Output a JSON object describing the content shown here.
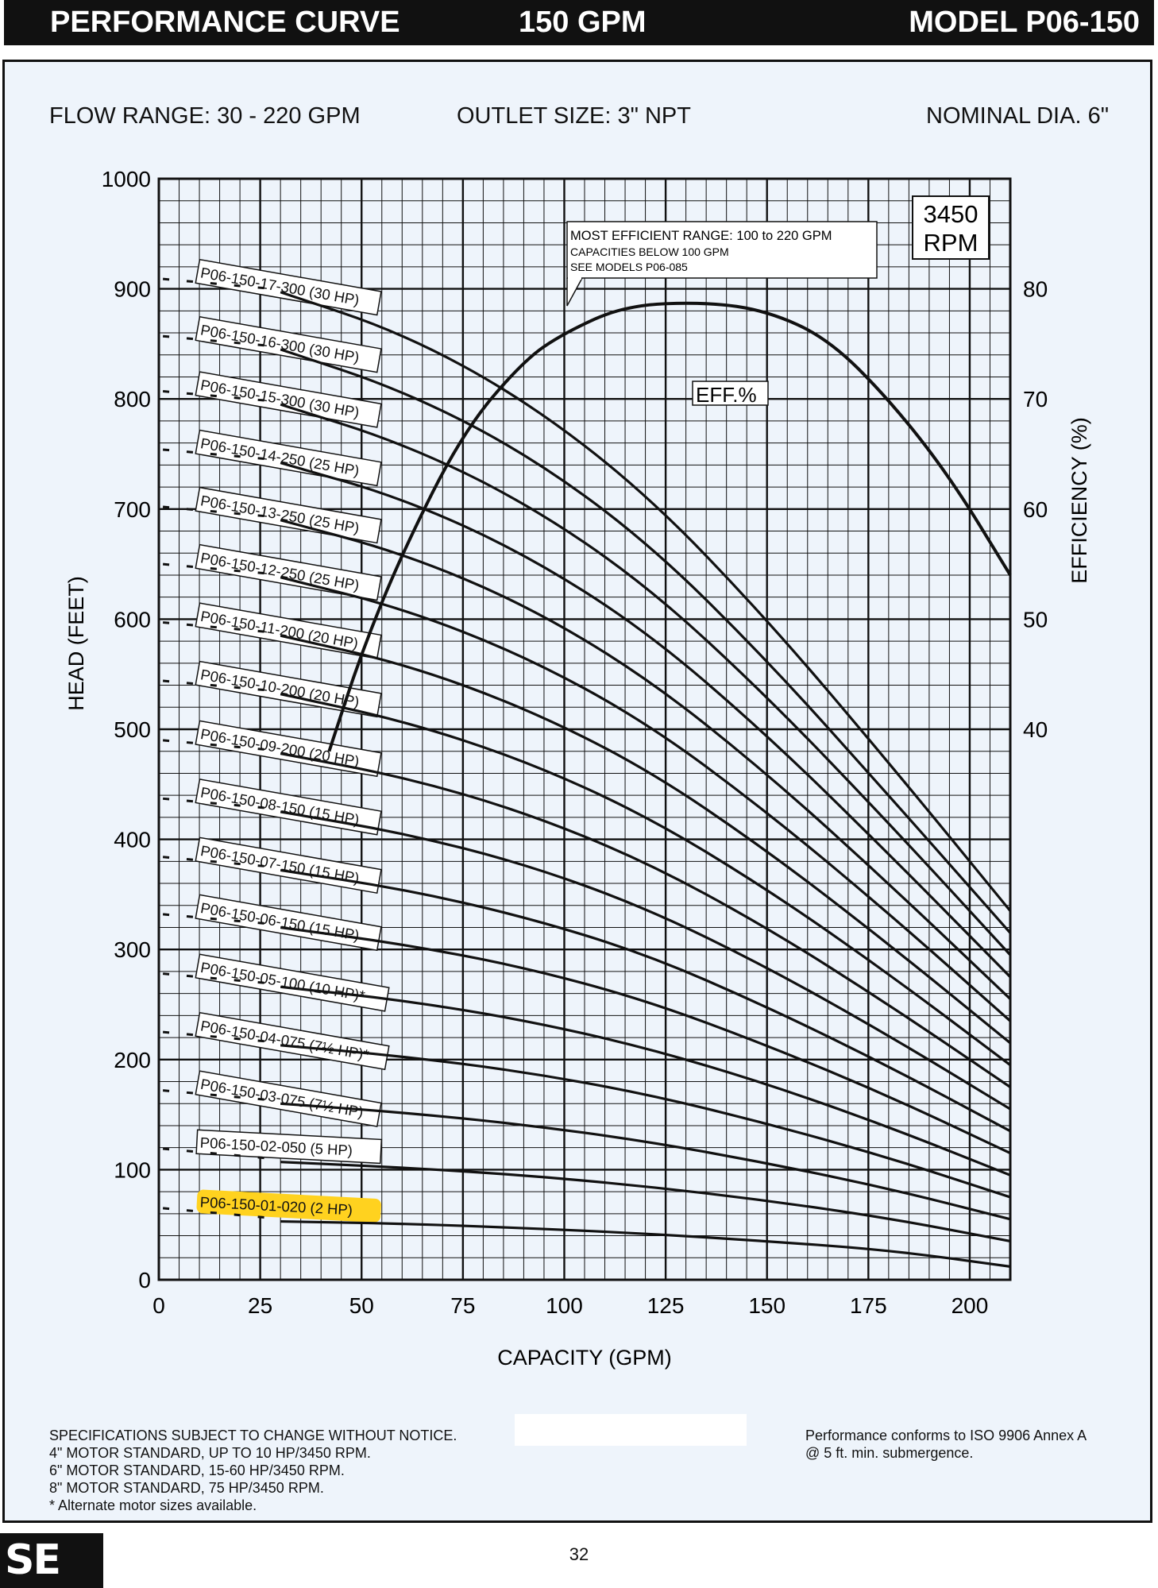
{
  "header": {
    "left": "PERFORMANCE CURVE",
    "center": "150 GPM",
    "right": "MODEL  P06-150"
  },
  "info": {
    "flow_range": "FLOW RANGE: 30 - 220 GPM",
    "outlet": "OUTLET SIZE: 3\" NPT",
    "nominal": "NOMINAL DIA. 6\""
  },
  "chart_data": {
    "type": "line",
    "xlabel": "CAPACITY (GPM)",
    "ylabel": "HEAD (FEET)",
    "y2label": "EFFICIENCY (%)",
    "xlim": [
      0,
      210
    ],
    "ylim": [
      0,
      1000
    ],
    "y2lim": [
      -10,
      90
    ],
    "x_ticks": [
      0,
      25,
      50,
      75,
      100,
      125,
      150,
      175,
      200
    ],
    "y_ticks": [
      0,
      100,
      200,
      300,
      400,
      500,
      600,
      700,
      800,
      900,
      1000
    ],
    "y2_ticks": [
      40,
      50,
      60,
      70,
      80
    ],
    "grid": true,
    "rpm_box": [
      "3450",
      "RPM"
    ],
    "efficiency_label": "EFF.%",
    "note": [
      "MOST EFFICIENT RANGE: 100 to 220 GPM",
      "CAPACITIES BELOW 100 GPM",
      "SEE MODELS  P06-085"
    ],
    "series": [
      {
        "name": "P06-150-17-300 (30 HP)",
        "x": [
          30,
          60,
          90,
          120,
          150,
          180,
          210
        ],
        "y": [
          897,
          860,
          800,
          715,
          600,
          470,
          335
        ]
      },
      {
        "name": "P06-150-16-300 (30 HP)",
        "x": [
          30,
          60,
          90,
          120,
          150,
          180,
          210
        ],
        "y": [
          845,
          808,
          752,
          672,
          563,
          440,
          315
        ]
      },
      {
        "name": "P06-150-15-300 (30 HP)",
        "x": [
          30,
          60,
          90,
          120,
          150,
          180,
          210
        ],
        "y": [
          795,
          760,
          707,
          632,
          530,
          415,
          295
        ]
      },
      {
        "name": "P06-150-14-250 (25 HP)",
        "x": [
          30,
          60,
          90,
          120,
          150,
          180,
          210
        ],
        "y": [
          742,
          710,
          660,
          590,
          495,
          387,
          275
        ]
      },
      {
        "name": "P06-150-13-250 (25 HP)",
        "x": [
          30,
          60,
          90,
          120,
          150,
          180,
          210
        ],
        "y": [
          690,
          660,
          614,
          548,
          460,
          360,
          255
        ]
      },
      {
        "name": "P06-150-12-250 (25 HP)",
        "x": [
          30,
          60,
          90,
          120,
          150,
          180,
          210
        ],
        "y": [
          638,
          610,
          567,
          507,
          425,
          333,
          235
        ]
      },
      {
        "name": "P06-150-11-200 (20 HP)",
        "x": [
          30,
          60,
          90,
          120,
          150,
          180,
          210
        ],
        "y": [
          585,
          560,
          520,
          465,
          390,
          305,
          215
        ]
      },
      {
        "name": "P06-150-10-200 (20 HP)",
        "x": [
          30,
          60,
          90,
          120,
          150,
          180,
          210
        ],
        "y": [
          532,
          508,
          472,
          422,
          355,
          278,
          195
        ]
      },
      {
        "name": "P06-150-09-200 (20 HP)",
        "x": [
          30,
          60,
          90,
          120,
          150,
          180,
          210
        ],
        "y": [
          478,
          457,
          425,
          380,
          320,
          250,
          175
        ]
      },
      {
        "name": "P06-150-08-150 (15 HP)",
        "x": [
          30,
          60,
          90,
          120,
          150,
          180,
          210
        ],
        "y": [
          425,
          406,
          378,
          338,
          284,
          222,
          155
        ]
      },
      {
        "name": "P06-150-07-150 (15 HP)",
        "x": [
          30,
          60,
          90,
          120,
          150,
          180,
          210
        ],
        "y": [
          372,
          355,
          330,
          296,
          248,
          194,
          135
        ]
      },
      {
        "name": "P06-150-06-150 (15 HP)",
        "x": [
          30,
          60,
          90,
          120,
          150,
          180,
          210
        ],
        "y": [
          320,
          305,
          284,
          254,
          213,
          167,
          115
        ]
      },
      {
        "name": "P06-150-05-100 (10 HP)*",
        "x": [
          30,
          60,
          90,
          120,
          150,
          180,
          210
        ],
        "y": [
          266,
          254,
          236,
          211,
          178,
          139,
          95
        ]
      },
      {
        "name": "P06-150-04-075 (7½ HP)*",
        "x": [
          30,
          60,
          90,
          120,
          150,
          180,
          210
        ],
        "y": [
          213,
          203,
          189,
          169,
          142,
          111,
          75
        ]
      },
      {
        "name": "P06-150-03-075 (7½ HP)",
        "x": [
          30,
          60,
          90,
          120,
          150,
          180,
          210
        ],
        "y": [
          160,
          152,
          141,
          126,
          106,
          83,
          55
        ]
      },
      {
        "name": "P06-150-02-050 (5 HP)",
        "x": [
          30,
          60,
          90,
          120,
          150,
          180,
          210
        ],
        "y": [
          107,
          102,
          95,
          85,
          72,
          56,
          35
        ]
      },
      {
        "name": "P06-150-01-020 (2 HP)",
        "x": [
          30,
          60,
          90,
          120,
          150,
          180,
          210
        ],
        "y": [
          53,
          51,
          47,
          42,
          35,
          27,
          12
        ]
      },
      {
        "name": "EFF.%",
        "axis": "efficiency",
        "x": [
          42,
          50,
          60,
          75,
          90,
          100,
          115,
          135,
          150,
          165,
          180,
          195,
          210
        ],
        "y": [
          38,
          47,
          56,
          67,
          73.5,
          76,
          78.5,
          78.8,
          78,
          75.5,
          70,
          63,
          54
        ]
      }
    ],
    "highlighted_series": "P06-150-01-020 (2 HP)",
    "highlight_color": "#ffd21f"
  },
  "footer": {
    "notes": [
      "SPECIFICATIONS SUBJECT TO CHANGE WITHOUT NOTICE.",
      "4\" MOTOR STANDARD, UP TO 10 HP/3450 RPM.",
      "6\" MOTOR STANDARD, 15-60 HP/3450 RPM.",
      "8\" MOTOR STANDARD, 75 HP/3450 RPM.",
      "* Alternate motor sizes available."
    ],
    "conformance": [
      "Performance conforms to ISO 9906 Annex A",
      "@ 5 ft. min. submergence."
    ],
    "logo": "SE",
    "page_number": "32"
  }
}
